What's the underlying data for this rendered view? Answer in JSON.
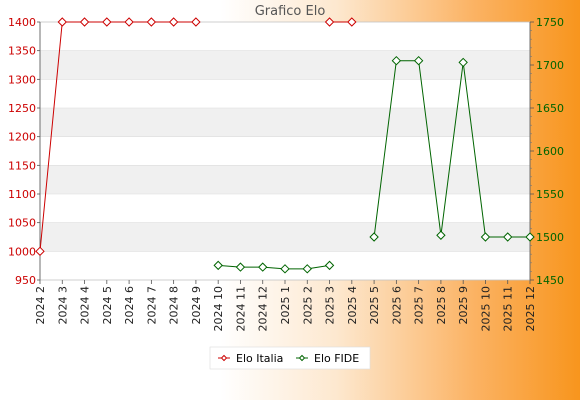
{
  "chart_data": {
    "type": "line",
    "title": "Grafico Elo",
    "categories": [
      "2024 2",
      "2024 3",
      "2024 4",
      "2024 5",
      "2024 6",
      "2024 7",
      "2024 8",
      "2024 9",
      "2024 10",
      "2024 11",
      "2024 12",
      "2025 1",
      "2025 2",
      "2025 3",
      "2025 4",
      "2025 5",
      "2025 6",
      "2025 7",
      "2025 8",
      "2025 9",
      "2025 10",
      "2025 11",
      "2025 12"
    ],
    "left_axis": {
      "ylim": [
        950,
        1400
      ],
      "ticks": [
        950,
        1000,
        1050,
        1100,
        1150,
        1200,
        1250,
        1300,
        1350,
        1400
      ]
    },
    "right_axis": {
      "ylim": [
        1450,
        1750
      ],
      "ticks": [
        1450,
        1500,
        1550,
        1600,
        1650,
        1700,
        1750
      ]
    },
    "grid": "horizontal-bands",
    "legend_placement": "bottom-center",
    "series": [
      {
        "name": "Elo Italia",
        "axis": "left",
        "color": "#cc0000",
        "values": [
          1000,
          1400,
          1400,
          1400,
          1400,
          1400,
          1400,
          1400,
          null,
          null,
          null,
          null,
          null,
          1400,
          1400,
          null,
          null,
          null,
          null,
          null,
          null,
          null,
          null
        ]
      },
      {
        "name": "Elo FIDE",
        "axis": "right",
        "color": "#006400",
        "values": [
          null,
          null,
          null,
          null,
          null,
          null,
          null,
          null,
          1467,
          1465,
          1465,
          1463,
          1463,
          1467,
          null,
          1500,
          1705,
          1705,
          1502,
          1703,
          1500,
          1500,
          1500
        ]
      }
    ]
  }
}
